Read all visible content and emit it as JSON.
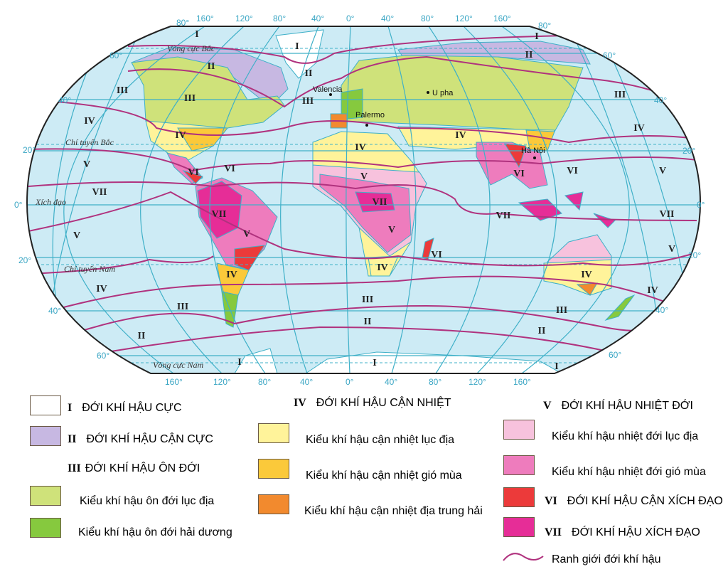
{
  "map": {
    "colors": {
      "ocean": "#cdebf5",
      "grid": "#3fb0c8",
      "boundary": "#b0327e",
      "polar": "#ffffff",
      "subpolar": "#c7b8e2",
      "temperate_continental": "#cfe27a",
      "temperate_oceanic": "#86c93e",
      "subtropical_continental": "#fff39a",
      "subtropical_monsoon": "#fbc93a",
      "subtropical_mediterranean": "#f28a2e",
      "tropical_continental": "#f7c2dd",
      "tropical_monsoon": "#ee7cbd",
      "subequatorial": "#ec3a3a",
      "equatorial": "#e62d97"
    },
    "top_degrees": [
      "80°",
      "160°",
      "120°",
      "80°",
      "40°",
      "0°",
      "40°",
      "80°",
      "120°",
      "160°",
      "80°"
    ],
    "bottom_degrees": [
      "160°",
      "120°",
      "80°",
      "40°",
      "0°",
      "40°",
      "80°",
      "120°",
      "160°"
    ],
    "left_latitudes": [
      "60°",
      "40°",
      "20°",
      "0°",
      "20°",
      "40°",
      "60°"
    ],
    "right_latitudes": [
      "60°",
      "40°",
      "20°",
      "0°",
      "20°",
      "40°",
      "60°"
    ],
    "lines": {
      "arctic": "Vòng cực Bắc",
      "cancer": "Chí tuyến Bắc",
      "equator": "Xích đạo",
      "capricorn": "Chí tuyến Nam",
      "antarctic": "Vòng cực Nam"
    },
    "cities": [
      "Valencia",
      "U pha",
      "Palermo",
      "Hà Nội"
    ],
    "zone_labels": [
      "I",
      "I",
      "II",
      "II",
      "III",
      "III",
      "III",
      "IV",
      "IV",
      "V",
      "VII",
      "VI",
      "VI",
      "IV",
      "IV",
      "V",
      "VII",
      "V",
      "VII",
      "V",
      "VI",
      "IV",
      "IV",
      "V",
      "IV",
      "III",
      "II",
      "III",
      "II",
      "I",
      "I",
      "I",
      "II",
      "III",
      "IV",
      "IV",
      "V",
      "VII",
      "VII",
      "VI",
      "VI",
      "V",
      "IV",
      "III",
      "II",
      "I",
      "III",
      "II",
      "III",
      "V"
    ]
  },
  "legend": {
    "col1": [
      {
        "roman": "I",
        "label": "ĐỚI KHÍ HẬU CỰC",
        "swatch": "#ffffff"
      },
      {
        "roman": "II",
        "label": "ĐỚI KHÍ HẬU CẬN CỰC",
        "swatch": "#c7b8e2"
      },
      {
        "roman": "III",
        "label": "ĐỚI KHÍ HẬU ÔN ĐỚI"
      },
      {
        "label": "Kiểu khí hậu ôn đới lục địa",
        "swatch": "#cfe27a"
      },
      {
        "label": "Kiểu khí hậu ôn đới hải dương",
        "swatch": "#86c93e"
      }
    ],
    "col2": [
      {
        "roman": "IV",
        "label": "ĐỚI KHÍ HẬU CẬN NHIỆT"
      },
      {
        "label": "Kiểu khí hậu cận nhiệt lục địa",
        "swatch": "#fff39a"
      },
      {
        "label": "Kiểu khí hậu cận nhiệt gió mùa",
        "swatch": "#fbc93a"
      },
      {
        "label": "Kiểu khí hậu cận nhiệt địa trung hải",
        "swatch": "#f28a2e"
      }
    ],
    "col3": [
      {
        "roman": "V",
        "label": "ĐỚI KHÍ HẬU NHIỆT ĐỚI"
      },
      {
        "label": "Kiểu khí hậu nhiệt đới lục địa",
        "swatch": "#f7c2dd"
      },
      {
        "label": "Kiểu khí hậu nhiệt đới gió mùa",
        "swatch": "#ee7cbd"
      },
      {
        "roman": "VI",
        "label": "ĐỚI KHÍ HẬU CẬN XÍCH ĐẠO",
        "swatch": "#ec3a3a"
      },
      {
        "roman": "VII",
        "label": "ĐỚI KHÍ HẬU XÍCH ĐẠO",
        "swatch": "#e62d97"
      },
      {
        "label": "Ranh giới đới khí hậu",
        "line": "#b0327e"
      }
    ]
  }
}
